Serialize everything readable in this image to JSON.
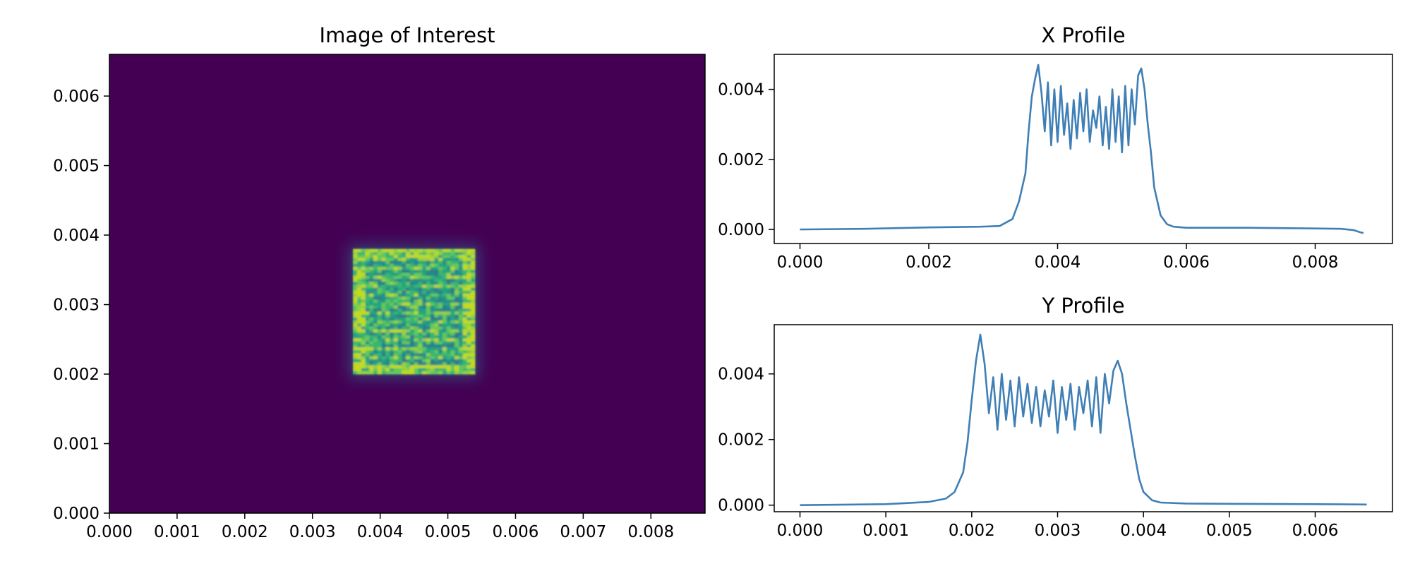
{
  "colors": {
    "background": "#440154",
    "line": "#3f7fb5",
    "heat_low": "#3a1a55",
    "heat_high": "#d2e21b"
  },
  "chart_data": [
    {
      "type": "heatmap",
      "title": "Image of Interest",
      "xlabel": "",
      "ylabel": "",
      "xlim": [
        0.0,
        0.0088
      ],
      "ylim": [
        0.0,
        0.0066
      ],
      "x_ticks": [
        "0.000",
        "0.001",
        "0.002",
        "0.003",
        "0.004",
        "0.005",
        "0.006",
        "0.007",
        "0.008"
      ],
      "y_ticks": [
        "0.000",
        "0.001",
        "0.002",
        "0.003",
        "0.004",
        "0.005",
        "0.006"
      ],
      "colormap": "viridis",
      "bright_region": {
        "x": [
          0.0036,
          0.0054
        ],
        "y": [
          0.002,
          0.0038
        ]
      },
      "grid": false
    },
    {
      "type": "line",
      "title": "X Profile",
      "xlabel": "",
      "ylabel": "",
      "xlim": [
        -0.0004,
        0.0092
      ],
      "ylim": [
        -0.0004,
        0.005
      ],
      "x_ticks": [
        "0.000",
        "0.002",
        "0.004",
        "0.006",
        "0.008"
      ],
      "y_ticks": [
        "0.000",
        "0.002",
        "0.004"
      ],
      "grid": false,
      "series": [
        {
          "x": [
            0.0,
            0.001,
            0.002,
            0.0028,
            0.0031,
            0.0033,
            0.0034,
            0.0035,
            0.00355,
            0.0036,
            0.00365,
            0.0037,
            0.00375,
            0.0038,
            0.00385,
            0.0039,
            0.00395,
            0.004,
            0.00405,
            0.0041,
            0.00415,
            0.0042,
            0.00425,
            0.0043,
            0.00435,
            0.0044,
            0.00445,
            0.0045,
            0.00455,
            0.0046,
            0.00465,
            0.0047,
            0.00475,
            0.0048,
            0.00485,
            0.0049,
            0.00495,
            0.005,
            0.00505,
            0.0051,
            0.00515,
            0.0052,
            0.00525,
            0.0053,
            0.00535,
            0.0054,
            0.00545,
            0.0055,
            0.0056,
            0.0057,
            0.0058,
            0.006,
            0.007,
            0.008,
            0.0084,
            0.0086,
            0.0087,
            0.00875
          ],
          "y": [
            0.0,
            2e-05,
            6e-05,
            8e-05,
            0.0001,
            0.0003,
            0.0008,
            0.0016,
            0.0028,
            0.0038,
            0.0043,
            0.0047,
            0.0039,
            0.0028,
            0.0042,
            0.0024,
            0.004,
            0.0025,
            0.0041,
            0.0027,
            0.0036,
            0.0023,
            0.0037,
            0.0026,
            0.0039,
            0.0028,
            0.004,
            0.0025,
            0.0034,
            0.0029,
            0.0038,
            0.0024,
            0.0035,
            0.0023,
            0.004,
            0.0025,
            0.0038,
            0.0022,
            0.0041,
            0.0024,
            0.004,
            0.003,
            0.0044,
            0.0046,
            0.004,
            0.003,
            0.0022,
            0.0012,
            0.0004,
            0.00015,
            8e-05,
            5e-05,
            5e-05,
            3e-05,
            2e-05,
            -2e-05,
            -8e-05,
            -0.0001
          ]
        }
      ]
    },
    {
      "type": "line",
      "title": "Y Profile",
      "xlabel": "",
      "ylabel": "",
      "xlim": [
        -0.0003,
        0.0069
      ],
      "ylim": [
        -0.0002,
        0.0055
      ],
      "x_ticks": [
        "0.000",
        "0.001",
        "0.002",
        "0.003",
        "0.004",
        "0.005",
        "0.006"
      ],
      "y_ticks": [
        "0.000",
        "0.002",
        "0.004"
      ],
      "grid": false,
      "series": [
        {
          "x": [
            0.0,
            0.001,
            0.0015,
            0.0017,
            0.0018,
            0.0019,
            0.00195,
            0.002,
            0.00205,
            0.0021,
            0.00215,
            0.0022,
            0.00225,
            0.0023,
            0.00235,
            0.0024,
            0.00245,
            0.0025,
            0.00255,
            0.0026,
            0.00265,
            0.0027,
            0.00275,
            0.0028,
            0.00285,
            0.0029,
            0.00295,
            0.003,
            0.00305,
            0.0031,
            0.00315,
            0.0032,
            0.00325,
            0.0033,
            0.00335,
            0.0034,
            0.00345,
            0.0035,
            0.00355,
            0.0036,
            0.00365,
            0.0037,
            0.00375,
            0.0038,
            0.00385,
            0.0039,
            0.00395,
            0.004,
            0.0041,
            0.0042,
            0.0045,
            0.005,
            0.006,
            0.0066
          ],
          "y": [
            0.0,
            3e-05,
            0.0001,
            0.0002,
            0.0004,
            0.001,
            0.0019,
            0.0032,
            0.0044,
            0.0052,
            0.0043,
            0.0028,
            0.0039,
            0.0023,
            0.004,
            0.0026,
            0.0038,
            0.0024,
            0.0039,
            0.0027,
            0.0037,
            0.0025,
            0.0036,
            0.0024,
            0.0035,
            0.0027,
            0.0038,
            0.0022,
            0.0036,
            0.0026,
            0.0037,
            0.0023,
            0.0036,
            0.0028,
            0.0038,
            0.0024,
            0.0039,
            0.0022,
            0.004,
            0.0031,
            0.0041,
            0.0044,
            0.004,
            0.0031,
            0.0023,
            0.0015,
            0.0008,
            0.0004,
            0.00015,
            8e-05,
            5e-05,
            4e-05,
            3e-05,
            2e-05
          ]
        }
      ]
    }
  ]
}
